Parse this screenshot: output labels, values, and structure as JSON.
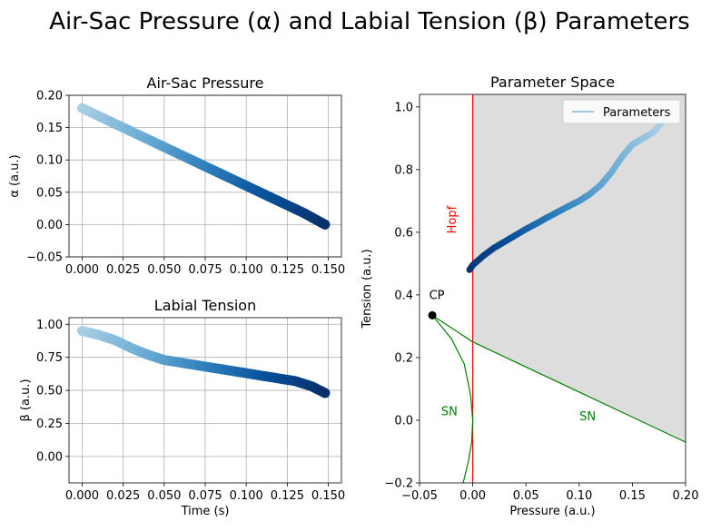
{
  "suptitle": "Air-Sac Pressure (α) and Labial Tension (β) Parameters",
  "chart_data": [
    {
      "type": "scatter",
      "title": "Air-Sac Pressure",
      "xlabel": "",
      "ylabel": "α (a.u.)",
      "xlim": [
        -0.008,
        0.158
      ],
      "ylim": [
        -0.05,
        0.2
      ],
      "xticks": [
        "0.000",
        "0.025",
        "0.050",
        "0.075",
        "0.100",
        "0.125",
        "0.150"
      ],
      "yticks": [
        "−0.05",
        "0.00",
        "0.05",
        "0.10",
        "0.15",
        "0.20"
      ],
      "grid": true,
      "colormap": "Blues (light to dark over time)",
      "x": [
        0.0,
        0.015,
        0.03,
        0.045,
        0.06,
        0.075,
        0.09,
        0.105,
        0.12,
        0.135,
        0.148
      ],
      "y": [
        0.18,
        0.162,
        0.144,
        0.126,
        0.108,
        0.09,
        0.072,
        0.054,
        0.036,
        0.018,
        0.0
      ]
    },
    {
      "type": "scatter",
      "title": "Labial Tension",
      "xlabel": "Time (s)",
      "ylabel": "β (a.u.)",
      "xlim": [
        -0.008,
        0.158
      ],
      "ylim": [
        -0.2,
        1.05
      ],
      "xticks": [
        "0.000",
        "0.025",
        "0.050",
        "0.075",
        "0.100",
        "0.125",
        "0.150"
      ],
      "yticks": [
        "0.00",
        "0.25",
        "0.50",
        "0.75",
        "1.00"
      ],
      "grid": true,
      "colormap": "Blues (light to dark over time)",
      "x": [
        0.0,
        0.01,
        0.02,
        0.03,
        0.04,
        0.05,
        0.06,
        0.07,
        0.08,
        0.09,
        0.1,
        0.11,
        0.12,
        0.13,
        0.14,
        0.148
      ],
      "y": [
        0.95,
        0.92,
        0.88,
        0.82,
        0.77,
        0.73,
        0.71,
        0.69,
        0.67,
        0.65,
        0.63,
        0.61,
        0.59,
        0.57,
        0.53,
        0.48
      ]
    },
    {
      "type": "line",
      "title": "Parameter Space",
      "xlabel": "Pressure (a.u.)",
      "ylabel": "Tension (a.u.)",
      "xlim": [
        -0.05,
        0.2
      ],
      "ylim": [
        -0.2,
        1.04
      ],
      "xticks": [
        "−0.05",
        "0.00",
        "0.05",
        "0.10",
        "0.15",
        "0.20"
      ],
      "yticks": [
        "−0.2",
        "0.0",
        "0.2",
        "0.4",
        "0.6",
        "0.8",
        "1.0"
      ],
      "grid": false,
      "legend": {
        "position": "top-right",
        "entries": [
          "Parameters"
        ]
      },
      "series": [
        {
          "name": "Parameters",
          "x": [
            -0.003,
            0.0,
            0.01,
            0.02,
            0.03,
            0.04,
            0.05,
            0.06,
            0.07,
            0.08,
            0.09,
            0.1,
            0.11,
            0.12,
            0.13,
            0.14,
            0.15,
            0.16,
            0.17,
            0.18
          ],
          "y": [
            0.48,
            0.495,
            0.525,
            0.55,
            0.57,
            0.59,
            0.61,
            0.628,
            0.647,
            0.665,
            0.683,
            0.7,
            0.722,
            0.75,
            0.79,
            0.84,
            0.88,
            0.9,
            0.92,
            0.96
          ]
        }
      ],
      "curves": [
        {
          "label": "Hopf",
          "color": "#ff0000",
          "x": [
            0.0,
            0.0
          ],
          "y": [
            -0.2,
            1.04
          ]
        },
        {
          "label": "SN",
          "color": "#008000",
          "x": [
            -0.038,
            0.0,
            0.05,
            0.1,
            0.15,
            0.2
          ],
          "y": [
            0.335,
            0.25,
            0.17,
            0.09,
            0.01,
            -0.07
          ]
        },
        {
          "label": "SN",
          "color": "#008000",
          "x": [
            -0.038,
            -0.02,
            -0.008,
            -0.002,
            0.0,
            -0.001,
            -0.004,
            -0.009
          ],
          "y": [
            0.335,
            0.26,
            0.18,
            0.08,
            0.0,
            -0.07,
            -0.13,
            -0.2
          ]
        }
      ],
      "region": {
        "color": "#dddddd",
        "description": "shaded region right of Hopf line and above SN curve"
      },
      "annotations": [
        {
          "text": "CP",
          "x": -0.038,
          "y": 0.335
        },
        {
          "text": "Hopf",
          "x": -0.014,
          "y": 0.64,
          "color": "#ff0000"
        },
        {
          "text": "SN",
          "x": -0.022,
          "y": 0.03,
          "color": "#008000"
        },
        {
          "text": "SN",
          "x": 0.108,
          "y": 0.015,
          "color": "#008000"
        }
      ]
    }
  ]
}
